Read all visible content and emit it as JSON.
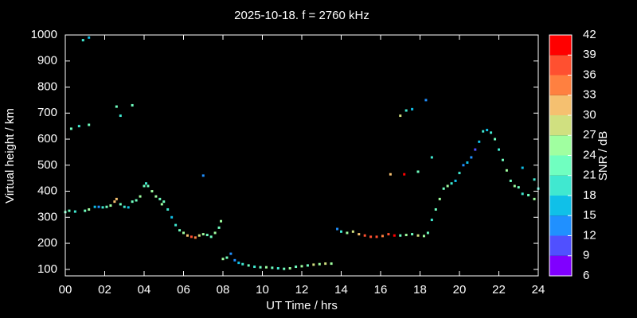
{
  "chart_data": {
    "type": "scatter",
    "title": "2025-10-18. f = 2760 kHz",
    "xlabel": "UT Time / hrs",
    "ylabel": "Virtual height / km",
    "colorbar_label": "SNR / dB",
    "xlim": [
      0,
      24
    ],
    "ylim": [
      75,
      1000
    ],
    "xticks": [
      {
        "value": 0,
        "label": "00"
      },
      {
        "value": 2,
        "label": "02"
      },
      {
        "value": 4,
        "label": "04"
      },
      {
        "value": 6,
        "label": "06"
      },
      {
        "value": 8,
        "label": "08"
      },
      10,
      12,
      14,
      16,
      18,
      20,
      22,
      24
    ],
    "yticks": [
      100,
      200,
      300,
      400,
      500,
      600,
      700,
      800,
      900,
      1000
    ],
    "clim": [
      6,
      42
    ],
    "cticks": [
      6,
      9,
      12,
      15,
      18,
      21,
      24,
      27,
      30,
      33,
      36,
      39,
      42
    ],
    "colors": [
      "#8000ff",
      "#5050ff",
      "#2090ff",
      "#10c0e8",
      "#40e8d0",
      "#70ffc0",
      "#a0ffa0",
      "#d0e080",
      "#f5c070",
      "#ff8040",
      "#ff5030",
      "#ff0000"
    ],
    "series": [
      {
        "x": [
          0.0,
          0.2,
          0.5,
          1.0,
          1.2,
          1.5,
          1.7,
          1.9,
          2.1,
          2.3,
          2.5,
          2.6,
          2.8,
          3.0,
          3.2,
          3.4,
          3.6,
          3.8,
          4.0,
          4.1,
          4.2,
          4.4,
          4.6,
          4.8,
          4.9,
          5.0,
          5.2,
          5.4,
          5.6,
          5.8,
          6.0,
          6.2,
          6.4,
          6.6,
          6.8,
          7.0,
          7.2,
          7.4,
          7.6,
          7.8,
          7.9,
          8.0,
          8.2,
          8.4,
          8.6,
          8.8,
          9.0,
          9.3,
          9.6,
          9.9,
          10.2,
          10.5,
          10.8,
          11.1,
          11.4,
          11.7,
          12.0,
          12.3,
          12.6,
          12.9,
          13.2,
          13.5,
          13.8,
          14.0,
          14.3,
          14.6,
          14.9,
          15.2,
          15.5,
          15.8,
          16.1,
          16.4,
          16.7,
          17.0,
          17.3,
          17.6,
          17.9,
          18.2,
          18.4,
          18.6,
          18.8,
          19.0,
          19.2,
          19.4,
          19.6,
          19.8,
          20.0,
          20.2,
          20.4,
          20.6,
          20.8,
          21.0,
          21.2,
          21.4,
          21.6,
          21.8,
          22.0,
          22.2,
          22.4,
          22.6,
          22.8,
          23.0,
          23.2,
          23.5,
          23.8,
          24.0,
          0.3,
          0.7,
          1.2,
          0.9,
          1.2,
          2.6,
          2.8,
          3.4,
          7.0,
          16.5,
          17.2,
          17.0,
          17.3,
          17.6,
          17.9,
          18.3,
          18.6,
          23.2,
          23.8
        ],
        "values": [
          320,
          325,
          322,
          325,
          330,
          340,
          340,
          338,
          340,
          345,
          360,
          370,
          350,
          340,
          338,
          360,
          365,
          380,
          420,
          430,
          420,
          400,
          380,
          370,
          350,
          360,
          330,
          300,
          270,
          250,
          240,
          230,
          225,
          222,
          230,
          235,
          232,
          225,
          240,
          260,
          285,
          140,
          145,
          160,
          135,
          125,
          120,
          115,
          110,
          108,
          108,
          106,
          104,
          102,
          104,
          110,
          112,
          115,
          118,
          120,
          122,
          122,
          255,
          245,
          240,
          245,
          235,
          230,
          225,
          225,
          228,
          235,
          230,
          230,
          232,
          235,
          230,
          228,
          240,
          290,
          330,
          370,
          410,
          420,
          430,
          440,
          470,
          500,
          510,
          530,
          560,
          590,
          630,
          635,
          625,
          600,
          560,
          520,
          480,
          440,
          420,
          415,
          390,
          385,
          370,
          410,
          640,
          650,
          655,
          980,
          990,
          725,
          690,
          730,
          460,
          465,
          465,
          690,
          710,
          715,
          475,
          750,
          530,
          490,
          445
        ],
        "snr": [
          21,
          21,
          18,
          21,
          24,
          15,
          12,
          18,
          21,
          24,
          30,
          30,
          21,
          18,
          15,
          21,
          21,
          24,
          21,
          18,
          21,
          24,
          24,
          21,
          24,
          21,
          18,
          15,
          18,
          21,
          24,
          30,
          36,
          33,
          27,
          24,
          21,
          21,
          24,
          21,
          24,
          24,
          21,
          12,
          12,
          15,
          18,
          21,
          18,
          21,
          24,
          21,
          18,
          21,
          24,
          21,
          24,
          21,
          27,
          24,
          27,
          24,
          12,
          18,
          24,
          27,
          30,
          36,
          36,
          36,
          33,
          36,
          39,
          21,
          24,
          21,
          27,
          24,
          21,
          18,
          21,
          24,
          21,
          24,
          18,
          15,
          18,
          12,
          15,
          12,
          9,
          15,
          18,
          15,
          18,
          21,
          18,
          21,
          24,
          21,
          24,
          21,
          18,
          21,
          24,
          18,
          21,
          18,
          21,
          18,
          15,
          21,
          18,
          21,
          12,
          30,
          42,
          27,
          18,
          15,
          21,
          12,
          18,
          15,
          18
        ]
      }
    ]
  }
}
